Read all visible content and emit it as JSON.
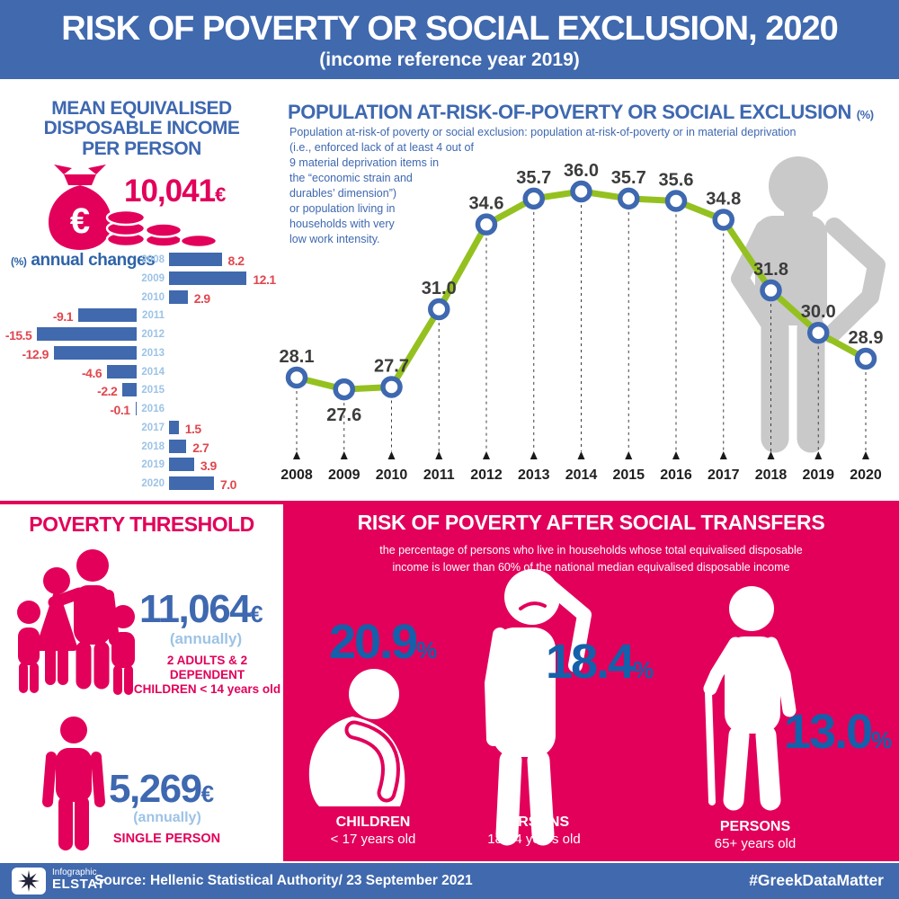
{
  "header": {
    "title": "RISK OF POVERTY OR SOCIAL EXCLUSION, 2020",
    "subtitle": "(income reference year 2019)"
  },
  "income": {
    "title": "MEAN EQUIVALISED\nDISPOSABLE INCOME\nPER PERSON",
    "amount": "10,041",
    "currency": "€",
    "changes_prefix": "(%)",
    "changes_label": "annual changes"
  },
  "arope": {
    "title": "POPULATION AT-RISK-OF-POVERTY OR SOCIAL EXCLUSION",
    "title_suffix": "(%)",
    "description": "Population at-risk-of poverty or social exclusion: population at-risk-of-poverty or in material deprivation\n(i.e., enforced lack of at least 4 out of\n9 material deprivation items in\nthe “economic strain and\ndurables’ dimension”)\nor population living in\nhouseholds with very\nlow work intensity."
  },
  "threshold": {
    "title": "POVERTY THRESHOLD",
    "family": {
      "amount": "11,064",
      "currency": "€",
      "annually": "(annually)",
      "label": "2 ADULTS & 2 DEPENDENT\nCHILDREN < 14 years old"
    },
    "single": {
      "amount": "5,269",
      "currency": "€",
      "annually": "(annually)",
      "label": "SINGLE PERSON"
    }
  },
  "transfers": {
    "title": "RISK OF POVERTY  AFTER SOCIAL TRANSFERS",
    "subtitle": "the percentage of persons who live in households whose total equivalised disposable\nincome is lower than 60% of the national median equivalised disposable income",
    "groups": [
      {
        "value": "20.9",
        "pct": "%",
        "label": "CHILDREN",
        "sublabel": "< 17 years old"
      },
      {
        "value": "18.4",
        "pct": "%",
        "label": "PERSONS",
        "sublabel": "18-64 years old"
      },
      {
        "value": "13.0",
        "pct": "%",
        "label": "PERSONS",
        "sublabel": "65+ years old"
      }
    ]
  },
  "footer": {
    "logo_line1": "Infographic",
    "logo_line2": "ELSTAT",
    "source": "Source: Hellenic Statistical Authority/ 23 September 2021",
    "hashtag": "#GreekDataMatter"
  },
  "colors": {
    "blue": "#4069AE",
    "text_blue": "#3E68B0",
    "light_blue": "#9DC3E6",
    "pink": "#E2005A",
    "red": "#E0474F",
    "green": "#94C11F",
    "dark_blue_pct": "#1460AA",
    "grey_silhouette": "#C9C9C9"
  },
  "chart_data": [
    {
      "type": "bar",
      "title": "(%) annual changes",
      "orientation": "horizontal",
      "categories": [
        "2008",
        "2009",
        "2010",
        "2011",
        "2012",
        "2013",
        "2014",
        "2015",
        "2016",
        "2017",
        "2018",
        "2019",
        "2020"
      ],
      "values": [
        8.2,
        12.1,
        2.9,
        -9.1,
        -15.5,
        -12.9,
        -4.6,
        -2.2,
        -0.1,
        1.5,
        2.7,
        3.9,
        7.0
      ],
      "bar_color": "#4069AE",
      "value_label_color": "#E0474F",
      "category_label_color": "#9DC3E6",
      "grid": false
    },
    {
      "type": "line",
      "title": "POPULATION AT-RISK-OF-POVERTY OR SOCIAL EXCLUSION (%)",
      "x": [
        "2008",
        "2009",
        "2010",
        "2011",
        "2012",
        "2013",
        "2014",
        "2015",
        "2016",
        "2017",
        "2018",
        "2019",
        "2020"
      ],
      "values": [
        28.1,
        27.6,
        27.7,
        31.0,
        34.6,
        35.7,
        36.0,
        35.7,
        35.6,
        34.8,
        31.8,
        30.0,
        28.9
      ],
      "ylim": [
        27,
        37
      ],
      "line_color": "#94C11F",
      "marker": "open-circle",
      "marker_color": "#3E68B0",
      "grid": false,
      "legend": "none"
    }
  ]
}
